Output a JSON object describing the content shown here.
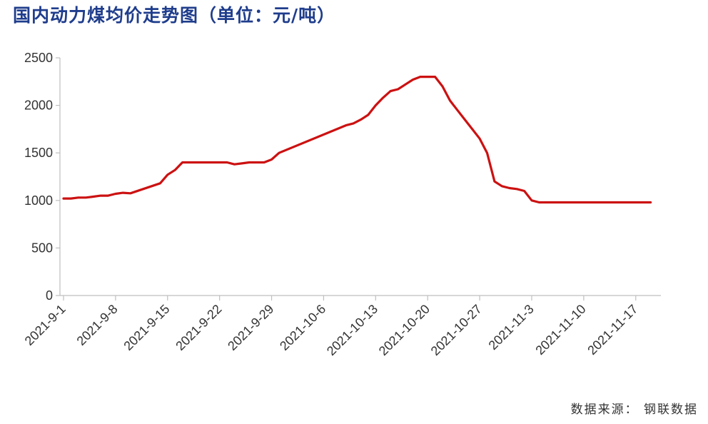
{
  "title": "国内动力煤均价走势图（单位：元/吨）",
  "source": "数据来源： 钢联数据",
  "colors": {
    "title": "#1f3d8c",
    "line": "#cc1111",
    "axis": "#bfbfbf"
  },
  "chart_data": {
    "type": "line",
    "title": "国内动力煤均价走势图（单位：元/吨）",
    "xlabel": "",
    "ylabel": "",
    "ylim": [
      0,
      2500
    ],
    "yticks": [
      0,
      500,
      1000,
      1500,
      2000,
      2500
    ],
    "grid": false,
    "xlim": [
      0,
      80
    ],
    "xtick_positions": [
      0,
      7,
      14,
      21,
      28,
      35,
      42,
      49,
      56,
      63,
      70,
      77
    ],
    "xtick_labels": [
      "2021-9-1",
      "2021-9-8",
      "2021-9-15",
      "2021-9-22",
      "2021-9-29",
      "2021-10-6",
      "2021-10-13",
      "2021-10-20",
      "2021-10-27",
      "2021-11-3",
      "2021-11-10",
      "2021-11-17"
    ],
    "series": [
      {
        "x": [
          0,
          1,
          2,
          3,
          4,
          5,
          6,
          7,
          8,
          9,
          13,
          14,
          15,
          16,
          17,
          18,
          22,
          23,
          24,
          25,
          26,
          27,
          28,
          29,
          38,
          39,
          40,
          41,
          42,
          43,
          44,
          45,
          46,
          47,
          48,
          49,
          50,
          51,
          52,
          53,
          54,
          55,
          56,
          57,
          58,
          59,
          60,
          61,
          62,
          63,
          64,
          65,
          66,
          67,
          68,
          69,
          70,
          71,
          72,
          73,
          74,
          75,
          76,
          77,
          78,
          79
        ],
        "y": [
          1020,
          1020,
          1030,
          1030,
          1040,
          1050,
          1050,
          1070,
          1080,
          1075,
          1180,
          1270,
          1320,
          1400,
          1400,
          1400,
          1400,
          1380,
          1390,
          1400,
          1400,
          1400,
          1430,
          1500,
          1790,
          1810,
          1850,
          1900,
          2000,
          2080,
          2150,
          2170,
          2220,
          2270,
          2300,
          2300,
          2300,
          2200,
          2050,
          1950,
          1850,
          1750,
          1650,
          1500,
          1200,
          1150,
          1130,
          1120,
          1100,
          1000,
          980,
          980,
          980,
          980,
          980,
          980,
          980,
          980,
          980,
          980,
          980,
          980,
          980,
          980,
          980,
          980
        ]
      }
    ]
  }
}
